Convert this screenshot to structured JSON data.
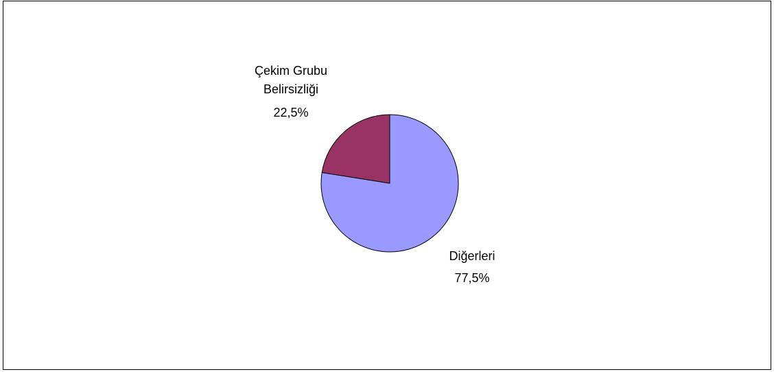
{
  "chart_data": {
    "type": "pie",
    "categories": [
      "Diğerleri",
      "Çekim Grubu Belirsizliği"
    ],
    "values": [
      77.5,
      22.5
    ],
    "value_labels": [
      "77,5%",
      "22,5%"
    ],
    "colors": [
      "#9999ff",
      "#993366"
    ]
  }
}
